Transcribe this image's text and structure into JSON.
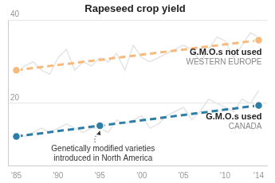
{
  "chart_data": {
    "type": "line",
    "title": "Rapeseed crop yield",
    "xlim": [
      1984,
      2015
    ],
    "xticks": [
      {
        "value": 1985,
        "label": "'85"
      },
      {
        "value": 1990,
        "label": "'90"
      },
      {
        "value": 1995,
        "label": "'95"
      },
      {
        "value": 2000,
        "label": "'00"
      },
      {
        "value": 2005,
        "label": "'05"
      },
      {
        "value": 2010,
        "label": "'10"
      },
      {
        "value": 2014,
        "label": "'14"
      }
    ],
    "ylim": [
      5,
      40
    ],
    "yticks": [
      20,
      40
    ],
    "grid": true,
    "series": [
      {
        "color": "#e4e4e4",
        "line_style": "solid",
        "marker": "none",
        "x": [
          1985,
          1986,
          1987,
          1988,
          1989,
          1990,
          1991,
          1992,
          1993,
          1994,
          1995,
          1996,
          1997,
          1998,
          1999,
          2000,
          2001,
          2002,
          2003,
          2004,
          2005,
          2006,
          2007,
          2008,
          2009,
          2010,
          2011,
          2012,
          2013,
          2014
        ],
        "values": [
          27,
          29,
          30,
          28,
          27,
          31,
          33,
          28,
          30,
          29,
          31,
          30,
          32,
          28,
          34,
          31,
          30,
          31,
          32,
          33,
          34,
          33,
          30,
          33,
          36,
          35,
          31,
          34,
          37,
          36
        ]
      },
      {
        "color": "#e4e4e4",
        "line_style": "solid",
        "marker": "none",
        "x": [
          1985,
          1986,
          1987,
          1988,
          1989,
          1990,
          1991,
          1992,
          1993,
          1994,
          1995,
          1996,
          1997,
          1998,
          1999,
          2000,
          2001,
          2002,
          2003,
          2004,
          2005,
          2006,
          2007,
          2008,
          2009,
          2010,
          2011,
          2012,
          2013,
          2014
        ],
        "values": [
          13,
          12,
          13,
          14,
          13,
          14,
          15,
          14,
          13,
          14,
          14,
          13,
          16,
          15,
          16,
          17,
          14,
          15,
          17,
          18,
          19,
          16,
          18,
          21,
          20,
          19,
          18,
          21,
          20,
          23
        ]
      },
      {
        "name": "G.M.O.s not used",
        "region": "WESTERN EUROPE",
        "color": "#f8b97c",
        "line_style": "dashed",
        "marker": "circle",
        "x": [
          1985,
          2014
        ],
        "values": [
          28,
          35.2
        ]
      },
      {
        "name": "G.M.O.s used",
        "region": "CANADA",
        "color": "#2c7ea6",
        "line_style": "dashed",
        "marker": "circle",
        "x": [
          1985,
          1995,
          2014
        ],
        "values": [
          12,
          14.6,
          19.5
        ]
      }
    ],
    "annotations": [
      {
        "text": [
          "Genetically modified varieties",
          "introduced in North America"
        ],
        "x": 1995
      }
    ]
  }
}
